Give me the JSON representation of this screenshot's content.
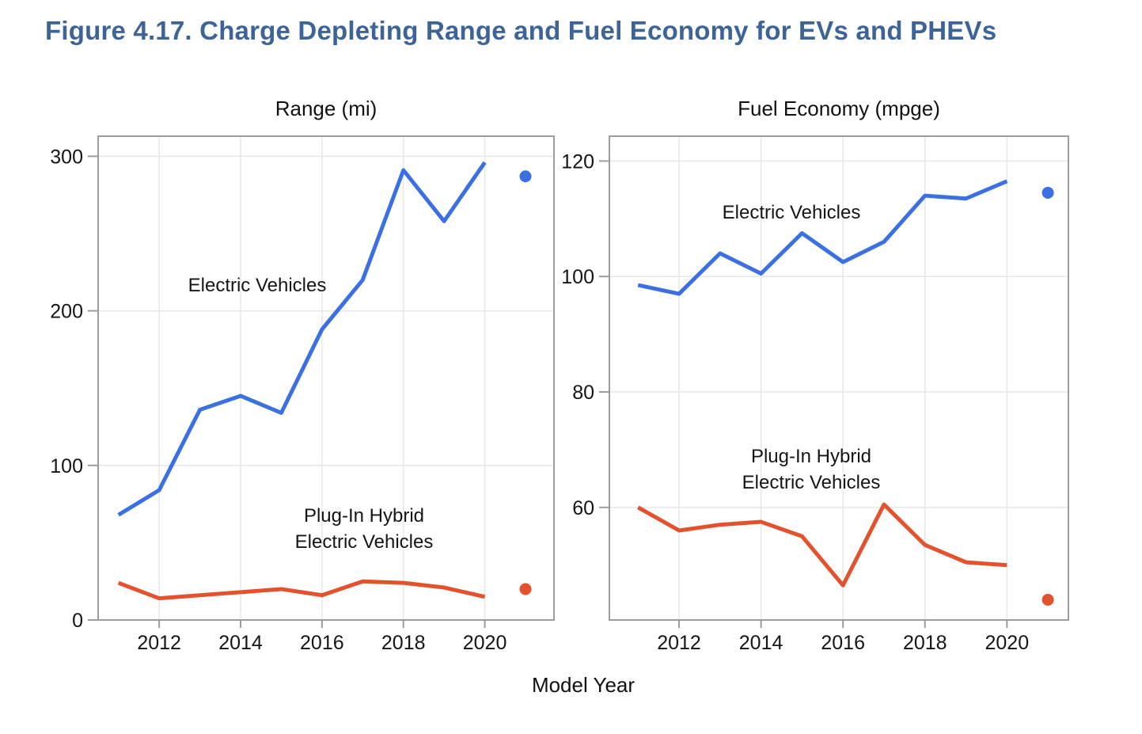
{
  "page": {
    "title": "Figure 4.17. Charge Depleting Range and Fuel Economy for EVs and PHEVs",
    "title_color": "#3D6498",
    "background": "#FFFFFF"
  },
  "shared": {
    "xlabel": "Model Year",
    "text_color": "#151515",
    "grid_color": "#E7E7E7",
    "axis_color": "#9C9C9C"
  },
  "chart_data": [
    {
      "type": "line",
      "title": "Range (mi)",
      "x": [
        2011,
        2012,
        2013,
        2014,
        2015,
        2016,
        2017,
        2018,
        2019,
        2020
      ],
      "xticks": [
        2012,
        2014,
        2016,
        2018,
        2020
      ],
      "yticks": [
        0,
        100,
        200,
        300
      ],
      "xlim": [
        2010.5,
        2021.7
      ],
      "ylim": [
        0,
        313
      ],
      "grid": true,
      "legend_position": "inline-annotations",
      "series": [
        {
          "name": "Electric Vehicles",
          "color": "#3B70E4",
          "values": [
            68,
            84,
            136,
            145,
            134,
            188,
            220,
            291,
            258,
            296
          ],
          "dot_year": 2021,
          "dot_value": 287,
          "annotation_lines": [
            "Electric Vehicles"
          ]
        },
        {
          "name": "Plug-In Hybrid Electric Vehicles",
          "color": "#E4522D",
          "values": [
            24,
            14,
            16,
            18,
            20,
            16,
            25,
            24,
            21,
            15
          ],
          "dot_year": 2021,
          "dot_value": 20,
          "annotation_lines": [
            "Plug-In Hybrid",
            "Electric Vehicles"
          ]
        }
      ]
    },
    {
      "type": "line",
      "title": "Fuel Economy (mpge)",
      "x": [
        2011,
        2012,
        2013,
        2014,
        2015,
        2016,
        2017,
        2018,
        2019,
        2020
      ],
      "xticks": [
        2012,
        2014,
        2016,
        2018,
        2020
      ],
      "yticks": [
        60,
        80,
        100,
        120
      ],
      "xlim": [
        2010.3,
        2021.5
      ],
      "ylim": [
        40.5,
        124.3
      ],
      "grid": true,
      "legend_position": "inline-annotations",
      "series": [
        {
          "name": "Electric Vehicles",
          "color": "#3B70E4",
          "values": [
            98.5,
            97,
            104,
            100.5,
            107.5,
            102.5,
            106,
            114,
            113.5,
            116.5
          ],
          "dot_year": 2021,
          "dot_value": 114.5,
          "annotation_lines": [
            "Electric Vehicles"
          ]
        },
        {
          "name": "Plug-In Hybrid Electric Vehicles",
          "color": "#E4522D",
          "values": [
            60,
            56,
            57,
            57.5,
            55,
            46.5,
            60.5,
            53.5,
            50.5,
            50
          ],
          "dot_year": 2021,
          "dot_value": 44,
          "annotation_lines": [
            "Plug-In Hybrid",
            "Electric Vehicles"
          ]
        }
      ]
    }
  ]
}
